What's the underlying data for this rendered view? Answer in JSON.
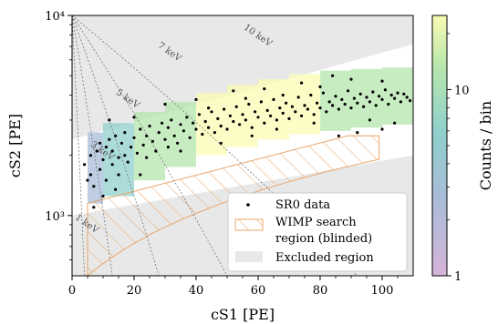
{
  "chart_data": {
    "type": "heatmap",
    "xlabel": "cS1 [PE]",
    "ylabel": "cS2 [PE]",
    "xlim": [
      0,
      110
    ],
    "ylim": [
      500,
      10000
    ],
    "y_scale": "log",
    "x_ticks": [
      0,
      20,
      40,
      60,
      80,
      100
    ],
    "x_tick_labels": [
      "0",
      "20",
      "40",
      "60",
      "80",
      "100"
    ],
    "y_ticks": [
      1000,
      10000
    ],
    "y_tick_labels": [
      "10³",
      "10⁴"
    ],
    "colorbar": {
      "label": "Counts / bin",
      "scale": "log",
      "range": [
        1,
        25
      ],
      "ticks": [
        1,
        10
      ],
      "tick_labels": [
        "1",
        "10"
      ],
      "colormap": [
        "#d6b4d8",
        "#a8bcd8",
        "#8fd0cc",
        "#b6e6ad",
        "#fbfbb4"
      ]
    },
    "energy_contours": [
      {
        "label": "1 keV",
        "cs1_max": 4
      },
      {
        "label": "3 keV",
        "cs1_max": 13
      },
      {
        "label": "5 keV",
        "cs1_max": 28
      },
      {
        "label": "7 keV",
        "cs1_max": 50
      },
      {
        "label": "10 keV",
        "cs1_max": 92
      }
    ],
    "legend": {
      "position": "lower right",
      "entries": [
        "SR0 data",
        "WIMP search region (blinded)",
        "Excluded region"
      ],
      "line1": "SR0 data",
      "line2a": "WIMP search",
      "line2b": "region (blinded)",
      "line3": "Excluded region"
    },
    "series": [
      {
        "name": "SR0 data",
        "kind": "scatter",
        "points": [
          [
            4,
            1800
          ],
          [
            5,
            1500
          ],
          [
            6,
            1600
          ],
          [
            6,
            2000
          ],
          [
            7,
            1400
          ],
          [
            8,
            2100
          ],
          [
            9,
            1700
          ],
          [
            9,
            2300
          ],
          [
            10,
            1900
          ],
          [
            11,
            1500
          ],
          [
            11,
            2200
          ],
          [
            12,
            2400
          ],
          [
            13,
            1800
          ],
          [
            13,
            2100
          ],
          [
            14,
            2500
          ],
          [
            15,
            1600
          ],
          [
            15,
            1950
          ],
          [
            16,
            2300
          ],
          [
            17,
            2000
          ],
          [
            17,
            2600
          ],
          [
            18,
            1850
          ],
          [
            19,
            2200
          ],
          [
            20,
            2450
          ],
          [
            21,
            2050
          ],
          [
            22,
            2700
          ],
          [
            23,
            2250
          ],
          [
            24,
            1950
          ],
          [
            24,
            2500
          ],
          [
            25,
            2800
          ],
          [
            26,
            2350
          ],
          [
            27,
            2100
          ],
          [
            28,
            2600
          ],
          [
            29,
            2900
          ],
          [
            30,
            2400
          ],
          [
            31,
            2200
          ],
          [
            31,
            2750
          ],
          [
            32,
            3000
          ],
          [
            33,
            2500
          ],
          [
            34,
            2300
          ],
          [
            35,
            2850
          ],
          [
            36,
            2650
          ],
          [
            37,
            3100
          ],
          [
            38,
            2450
          ],
          [
            39,
            2900
          ],
          [
            40,
            2700
          ],
          [
            41,
            3200
          ],
          [
            42,
            2550
          ],
          [
            43,
            2950
          ],
          [
            44,
            2750
          ],
          [
            45,
            3300
          ],
          [
            46,
            2600
          ],
          [
            47,
            3050
          ],
          [
            48,
            2800
          ],
          [
            49,
            3400
          ],
          [
            50,
            2700
          ],
          [
            51,
            3150
          ],
          [
            52,
            2950
          ],
          [
            53,
            3500
          ],
          [
            54,
            2850
          ],
          [
            55,
            3200
          ],
          [
            56,
            3000
          ],
          [
            57,
            3600
          ],
          [
            58,
            2750
          ],
          [
            59,
            3300
          ],
          [
            60,
            3100
          ],
          [
            61,
            3700
          ],
          [
            62,
            2900
          ],
          [
            63,
            3350
          ],
          [
            64,
            3150
          ],
          [
            65,
            3800
          ],
          [
            66,
            3000
          ],
          [
            67,
            3450
          ],
          [
            68,
            3250
          ],
          [
            69,
            3650
          ],
          [
            70,
            3050
          ],
          [
            71,
            3500
          ],
          [
            72,
            3300
          ],
          [
            73,
            3900
          ],
          [
            74,
            3150
          ],
          [
            75,
            3550
          ],
          [
            76,
            3400
          ],
          [
            77,
            4000
          ],
          [
            78,
            3200
          ],
          [
            79,
            3650
          ],
          [
            80,
            3450
          ],
          [
            81,
            4100
          ],
          [
            82,
            3300
          ],
          [
            83,
            3700
          ],
          [
            84,
            3550
          ],
          [
            85,
            3950
          ],
          [
            86,
            3400
          ],
          [
            87,
            3800
          ],
          [
            88,
            3600
          ],
          [
            89,
            4200
          ],
          [
            90,
            3450
          ],
          [
            91,
            3850
          ],
          [
            92,
            3650
          ],
          [
            93,
            4050
          ],
          [
            94,
            3500
          ],
          [
            95,
            3900
          ],
          [
            96,
            3700
          ],
          [
            97,
            4150
          ],
          [
            98,
            3550
          ],
          [
            99,
            3950
          ],
          [
            100,
            3800
          ],
          [
            101,
            4250
          ],
          [
            102,
            3600
          ],
          [
            103,
            4000
          ],
          [
            104,
            3850
          ],
          [
            105,
            4100
          ],
          [
            106,
            3700
          ],
          [
            107,
            4050
          ],
          [
            108,
            3900
          ],
          [
            109,
            3750
          ],
          [
            22,
            1600
          ],
          [
            35,
            2100
          ],
          [
            48,
            2300
          ],
          [
            58,
            2500
          ],
          [
            66,
            2700
          ],
          [
            78,
            2900
          ],
          [
            92,
            2600
          ],
          [
            100,
            2700
          ],
          [
            104,
            2900
          ],
          [
            96,
            3000
          ],
          [
            86,
            2500
          ],
          [
            10,
            1250
          ],
          [
            14,
            1350
          ],
          [
            7,
            1100
          ],
          [
            12,
            3000
          ],
          [
            20,
            3100
          ],
          [
            30,
            3600
          ],
          [
            40,
            3800
          ],
          [
            52,
            4200
          ],
          [
            62,
            4300
          ],
          [
            74,
            4600
          ],
          [
            84,
            5000
          ],
          [
            90,
            4800
          ],
          [
            100,
            4700
          ],
          [
            44,
            3450
          ],
          [
            56,
            3850
          ],
          [
            68,
            4000
          ],
          [
            80,
            4400
          ]
        ]
      }
    ],
    "heatmap_bins": [
      {
        "x": [
          5,
          10
        ],
        "y": [
          1150,
          2600
        ],
        "count": 3
      },
      {
        "x": [
          10,
          20
        ],
        "y": [
          1250,
          2900
        ],
        "count": 6
      },
      {
        "x": [
          20,
          30
        ],
        "y": [
          1500,
          3300
        ],
        "count": 10
      },
      {
        "x": [
          30,
          40
        ],
        "y": [
          1750,
          3700
        ],
        "count": 14
      },
      {
        "x": [
          40,
          50
        ],
        "y": [
          2000,
          4100
        ],
        "count": 18
      },
      {
        "x": [
          50,
          60
        ],
        "y": [
          2200,
          4500
        ],
        "count": 20
      },
      {
        "x": [
          60,
          70
        ],
        "y": [
          2400,
          4800
        ],
        "count": 22
      },
      {
        "x": [
          70,
          80
        ],
        "y": [
          2550,
          5100
        ],
        "count": 20
      },
      {
        "x": [
          80,
          90
        ],
        "y": [
          2650,
          5300
        ],
        "count": 16
      },
      {
        "x": [
          90,
          100
        ],
        "y": [
          2750,
          5400
        ],
        "count": 12
      },
      {
        "x": [
          100,
          110
        ],
        "y": [
          2850,
          5500
        ],
        "count": 8
      }
    ]
  }
}
